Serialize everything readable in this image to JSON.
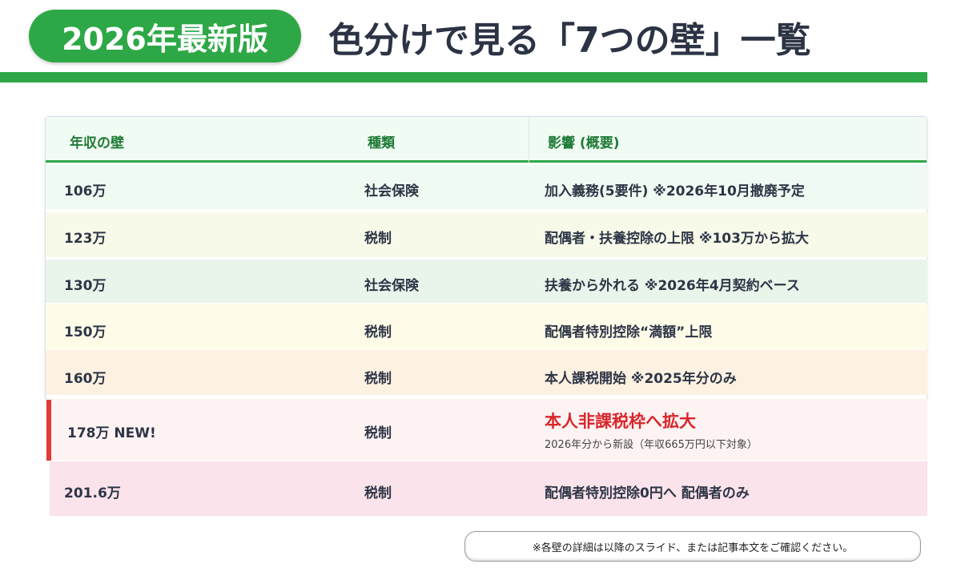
{
  "header": {
    "badge": "2026年最新版",
    "title": "色分けで見る「7つの壁」一覧"
  },
  "table": {
    "columns": [
      "年収の壁",
      "種類",
      "影響 (概要)"
    ],
    "rows": [
      {
        "wall": "106万",
        "type": "社会保険",
        "impact": "加入義務(5要件) ※2026年10月撤廃予定",
        "bg": "#effbf2"
      },
      {
        "wall": "123万",
        "type": "税制",
        "impact": "配偶者・扶養控除の上限 ※103万から拡大",
        "bg": "#f7fae9"
      },
      {
        "wall": "130万",
        "type": "社会保険",
        "impact": "扶養から外れる ※2026年4月契約ベース",
        "bg": "#e9f5ea"
      },
      {
        "wall": "150万",
        "type": "税制",
        "impact": "配偶者特別控除“満額”上限",
        "bg": "#fefce8"
      },
      {
        "wall": "160万",
        "type": "税制",
        "impact": "本人課税開始 ※2025年分のみ",
        "bg": "#fdf1e2"
      },
      {
        "wall": "178万 NEW!",
        "type": "税制",
        "impact": "本人非課税枠へ拡大",
        "impact_sub": "2026年分から新設（年収665万円以下対象）",
        "bg": "#fef3f3"
      },
      {
        "wall": "201.6万",
        "type": "税制",
        "impact": "配偶者特別控除0円へ 配偶者のみ",
        "bg": "#fae3ea"
      }
    ]
  },
  "footer": {
    "note": "※各壁の詳細は以降のスライド、または記事本文をご確認ください。"
  },
  "colors": {
    "accent": "#2ea846",
    "highlight": "#d9262b"
  }
}
